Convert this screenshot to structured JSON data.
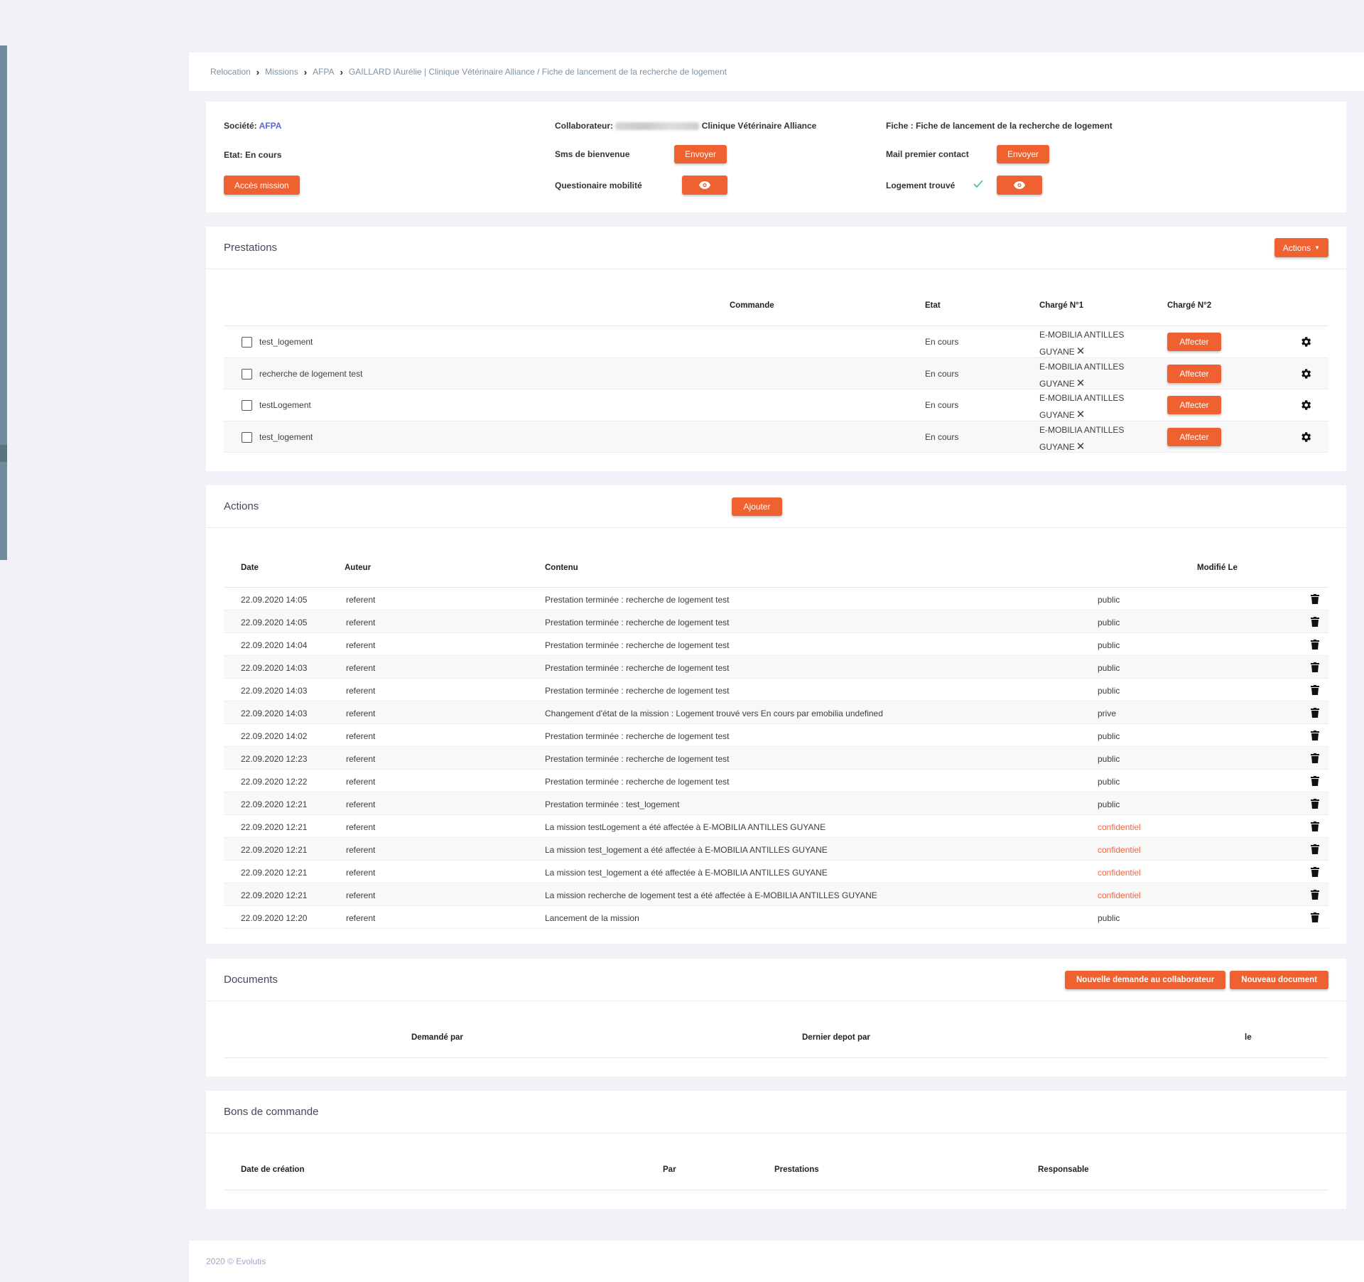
{
  "breadcrumb": [
    "Relocation",
    "Missions",
    "AFPA",
    "GAILLARD lAurélie | Clinique Vétérinaire Alliance / Fiche de lancement de la recherche de logement"
  ],
  "info": {
    "societe_label": "Société:",
    "societe_value": "AFPA",
    "etat_label": "Etat:",
    "etat_value": "En cours",
    "acces_button": "Accès mission",
    "collab_label": "Collaborateur:",
    "collab_value": "Clinique Vétérinaire Alliance",
    "sms_label": "Sms de bienvenue",
    "sms_button": "Envoyer",
    "questionnaire_label": "Questionaire mobilité",
    "fiche_label": "Fiche :",
    "fiche_value": "Fiche de lancement de la recherche de logement",
    "mail_label": "Mail premier contact",
    "mail_button": "Envoyer",
    "logement_label": "Logement trouvé"
  },
  "prestations": {
    "title": "Prestations",
    "actions_button": "Actions",
    "headers": {
      "commande": "Commande",
      "etat": "Etat",
      "charge1": "Chargé N°1",
      "charge2": "Chargé N°2"
    },
    "rows": [
      {
        "name": "test_logement",
        "etat": "En cours",
        "charge1_line1": "E-MOBILIA ANTILLES",
        "charge1_line2": "GUYANE",
        "button": "Affecter"
      },
      {
        "name": "recherche de logement test",
        "etat": "En cours",
        "charge1_line1": "E-MOBILIA ANTILLES",
        "charge1_line2": "GUYANE",
        "button": "Affecter"
      },
      {
        "name": "testLogement",
        "etat": "En cours",
        "charge1_line1": "E-MOBILIA ANTILLES",
        "charge1_line2": "GUYANE",
        "button": "Affecter"
      },
      {
        "name": "test_logement",
        "etat": "En cours",
        "charge1_line1": "E-MOBILIA ANTILLES",
        "charge1_line2": "GUYANE",
        "button": "Affecter"
      }
    ]
  },
  "actions": {
    "title": "Actions",
    "add_button": "Ajouter",
    "headers": {
      "date": "Date",
      "auteur": "Auteur",
      "contenu": "Contenu",
      "modifie": "Modifié Le"
    },
    "rows": [
      {
        "date": "22.09.2020 14:05",
        "auteur": "referent",
        "contenu": "Prestation terminée : recherche de logement test",
        "visibility": "public"
      },
      {
        "date": "22.09.2020 14:05",
        "auteur": "referent",
        "contenu": "Prestation terminée : recherche de logement test",
        "visibility": "public"
      },
      {
        "date": "22.09.2020 14:04",
        "auteur": "referent",
        "contenu": "Prestation terminée : recherche de logement test",
        "visibility": "public"
      },
      {
        "date": "22.09.2020 14:03",
        "auteur": "referent",
        "contenu": "Prestation terminée : recherche de logement test",
        "visibility": "public"
      },
      {
        "date": "22.09.2020 14:03",
        "auteur": "referent",
        "contenu": "Prestation terminée : recherche de logement test",
        "visibility": "public"
      },
      {
        "date": "22.09.2020 14:03",
        "auteur": "referent",
        "contenu": "Changement d'état de la mission : Logement trouvé vers En cours par emobilia undefined",
        "visibility": "prive"
      },
      {
        "date": "22.09.2020 14:02",
        "auteur": "referent",
        "contenu": "Prestation terminée : recherche de logement test",
        "visibility": "public"
      },
      {
        "date": "22.09.2020 12:23",
        "auteur": "referent",
        "contenu": "Prestation terminée : recherche de logement test",
        "visibility": "public"
      },
      {
        "date": "22.09.2020 12:22",
        "auteur": "referent",
        "contenu": "Prestation terminée : recherche de logement test",
        "visibility": "public"
      },
      {
        "date": "22.09.2020 12:21",
        "auteur": "referent",
        "contenu": "Prestation terminée : test_logement",
        "visibility": "public"
      },
      {
        "date": "22.09.2020 12:21",
        "auteur": "referent",
        "contenu": "La mission testLogement a été affectée à E-MOBILIA ANTILLES GUYANE",
        "visibility": "confidentiel"
      },
      {
        "date": "22.09.2020 12:21",
        "auteur": "referent",
        "contenu": "La mission test_logement a été affectée à E-MOBILIA ANTILLES GUYANE",
        "visibility": "confidentiel"
      },
      {
        "date": "22.09.2020 12:21",
        "auteur": "referent",
        "contenu": "La mission test_logement a été affectée à E-MOBILIA ANTILLES GUYANE",
        "visibility": "confidentiel"
      },
      {
        "date": "22.09.2020 12:21",
        "auteur": "referent",
        "contenu": "La mission recherche de logement test a été affectée à E-MOBILIA ANTILLES GUYANE",
        "visibility": "confidentiel"
      },
      {
        "date": "22.09.2020 12:20",
        "auteur": "referent",
        "contenu": "Lancement de la mission",
        "visibility": "public"
      }
    ]
  },
  "documents": {
    "title": "Documents",
    "btn_demande": "Nouvelle demande au collaborateur",
    "btn_nouveau": "Nouveau document",
    "headers": {
      "demande_par": "Demandé par",
      "dernier_depot": "Dernier depot par",
      "le": "le"
    }
  },
  "bons": {
    "title": "Bons de commande",
    "headers": {
      "date_creation": "Date de création",
      "par": "Par",
      "prestations": "Prestations",
      "responsable": "Responsable"
    }
  },
  "footer": {
    "text": "2020 © Evolutis"
  },
  "colors": {
    "accent": "#ef6130",
    "link": "#5867dd",
    "confidentiel": "#f0663a",
    "check": "#34bfa3"
  }
}
